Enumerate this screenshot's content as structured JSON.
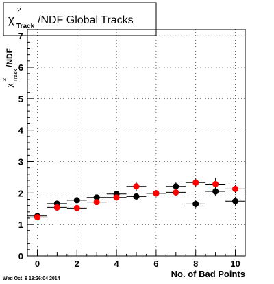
{
  "chart_data": {
    "type": "scatter",
    "title": "/NDF  Global Tracks",
    "title_symbol": "χ",
    "title_sup": "2",
    "title_sub": "Track",
    "xlabel": "No. of Bad Points",
    "ylabel": "/NDF",
    "ylabel_symbol": "χ",
    "ylabel_sup": "2",
    "ylabel_sub": "Track",
    "xlim": [
      -0.5,
      10.5
    ],
    "ylim": [
      0,
      7.2
    ],
    "x_ticks": [
      0,
      2,
      4,
      6,
      8,
      10
    ],
    "y_ticks": [
      0,
      1,
      2,
      3,
      4,
      5,
      6,
      7
    ],
    "grid": true,
    "timestamp": "Wed Oct  8 18:26:04 2014",
    "series": [
      {
        "color": "#000000",
        "x": [
          0,
          1,
          2,
          3,
          4,
          5,
          6,
          7,
          8,
          9,
          10
        ],
        "y": [
          1.27,
          1.66,
          1.77,
          1.86,
          1.97,
          1.89,
          1.99,
          2.21,
          1.65,
          2.05,
          1.74
        ],
        "yerr": [
          0.05,
          0.05,
          0.06,
          0.07,
          0.08,
          0.09,
          0.1,
          0.12,
          0.12,
          0.13,
          0.14
        ]
      },
      {
        "color": "#ff0000",
        "x": [
          0,
          1,
          2,
          3,
          4,
          5,
          6,
          7,
          8,
          9,
          10
        ],
        "y": [
          1.23,
          1.54,
          1.52,
          1.71,
          1.86,
          2.21,
          1.99,
          2.02,
          2.33,
          2.28,
          2.13
        ],
        "yerr": [
          0.05,
          0.06,
          0.07,
          0.08,
          0.1,
          0.15,
          0.1,
          0.12,
          0.14,
          0.2,
          0.14
        ]
      }
    ]
  }
}
